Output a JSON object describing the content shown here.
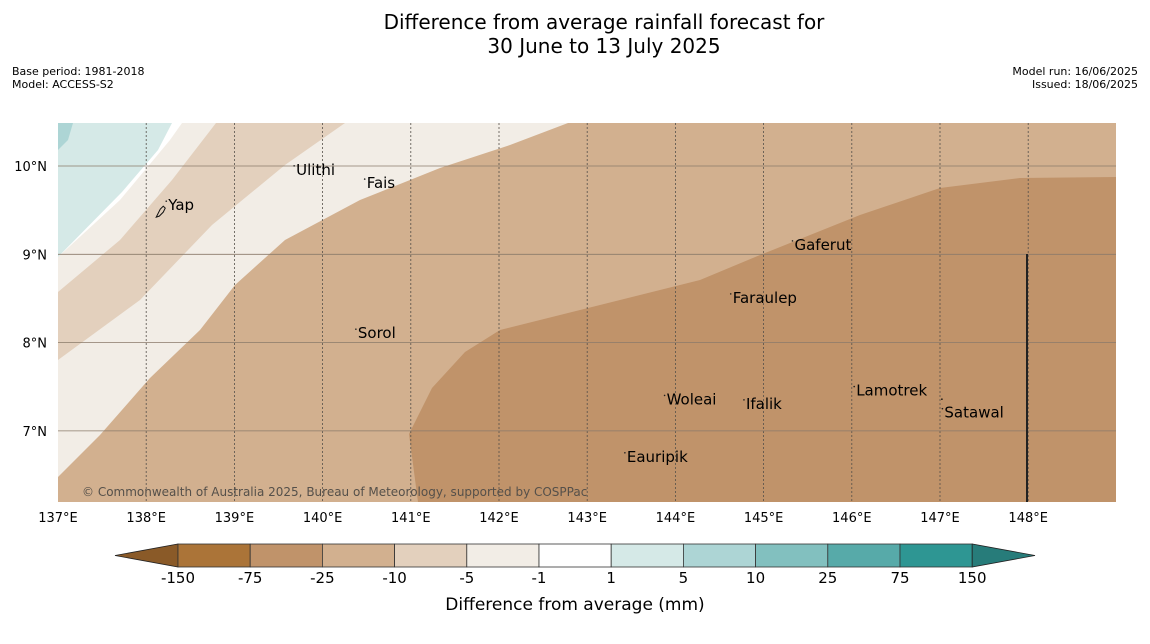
{
  "title_line1": "Difference from average rainfall forecast for",
  "title_line2": "30 June to 13 July 2025",
  "meta_left": [
    "Base period: 1981-2018",
    "Model: ACCESS-S2"
  ],
  "meta_right": [
    "Model run: 16/06/2025",
    "Issued: 18/06/2025"
  ],
  "copyright": "© Commonwealth of Australia 2025, Bureau of Meteorology, supported by COSPPac",
  "longitude_labels": [
    "137°E",
    "138°E",
    "139°E",
    "140°E",
    "141°E",
    "142°E",
    "143°E",
    "144°E",
    "145°E",
    "146°E",
    "147°E",
    "148°E"
  ],
  "latitude_labels": [
    "10°N",
    "9°N",
    "8°N",
    "7°N"
  ],
  "places": [
    {
      "name": "Yap",
      "lon": 138.25,
      "lat": 9.5
    },
    {
      "name": "Ulithi",
      "lon": 139.7,
      "lat": 9.9
    },
    {
      "name": "Fais",
      "lon": 140.5,
      "lat": 9.75
    },
    {
      "name": "Gaferut",
      "lon": 145.35,
      "lat": 9.05
    },
    {
      "name": "Faraulep",
      "lon": 144.65,
      "lat": 8.45
    },
    {
      "name": "Sorol",
      "lon": 140.4,
      "lat": 8.05
    },
    {
      "name": "Lamotrek",
      "lon": 146.05,
      "lat": 7.4
    },
    {
      "name": "Woleai",
      "lon": 143.9,
      "lat": 7.3
    },
    {
      "name": "Ifalik",
      "lon": 144.8,
      "lat": 7.25
    },
    {
      "name": "Satawal",
      "lon": 147.05,
      "lat": 7.15
    },
    {
      "name": "Eauripik",
      "lon": 143.45,
      "lat": 6.65
    }
  ],
  "colorbar": {
    "label": "Difference from average (mm)",
    "ticks": [
      "-150",
      "-75",
      "-25",
      "-10",
      "-5",
      "-1",
      "1",
      "5",
      "10",
      "25",
      "75",
      "150"
    ],
    "colors": [
      "#ab7438",
      "#c0936a",
      "#d2b08f",
      "#e3d0bd",
      "#f2ede6",
      "#ffffff",
      "#d5e9e7",
      "#add5d5",
      "#82c0bf",
      "#57aaa9",
      "#2e9693"
    ],
    "extend_low_color": "#8a5a28",
    "extend_high_color": "#277c7a"
  },
  "map_colors": {
    "deep_brown": "#c0936a",
    "mid_brown": "#d2b08f",
    "light_brown": "#e3d0bd",
    "pale": "#f2ede6",
    "white": "#ffffff",
    "light_teal": "#d5e9e7",
    "teal": "#add5d5"
  }
}
